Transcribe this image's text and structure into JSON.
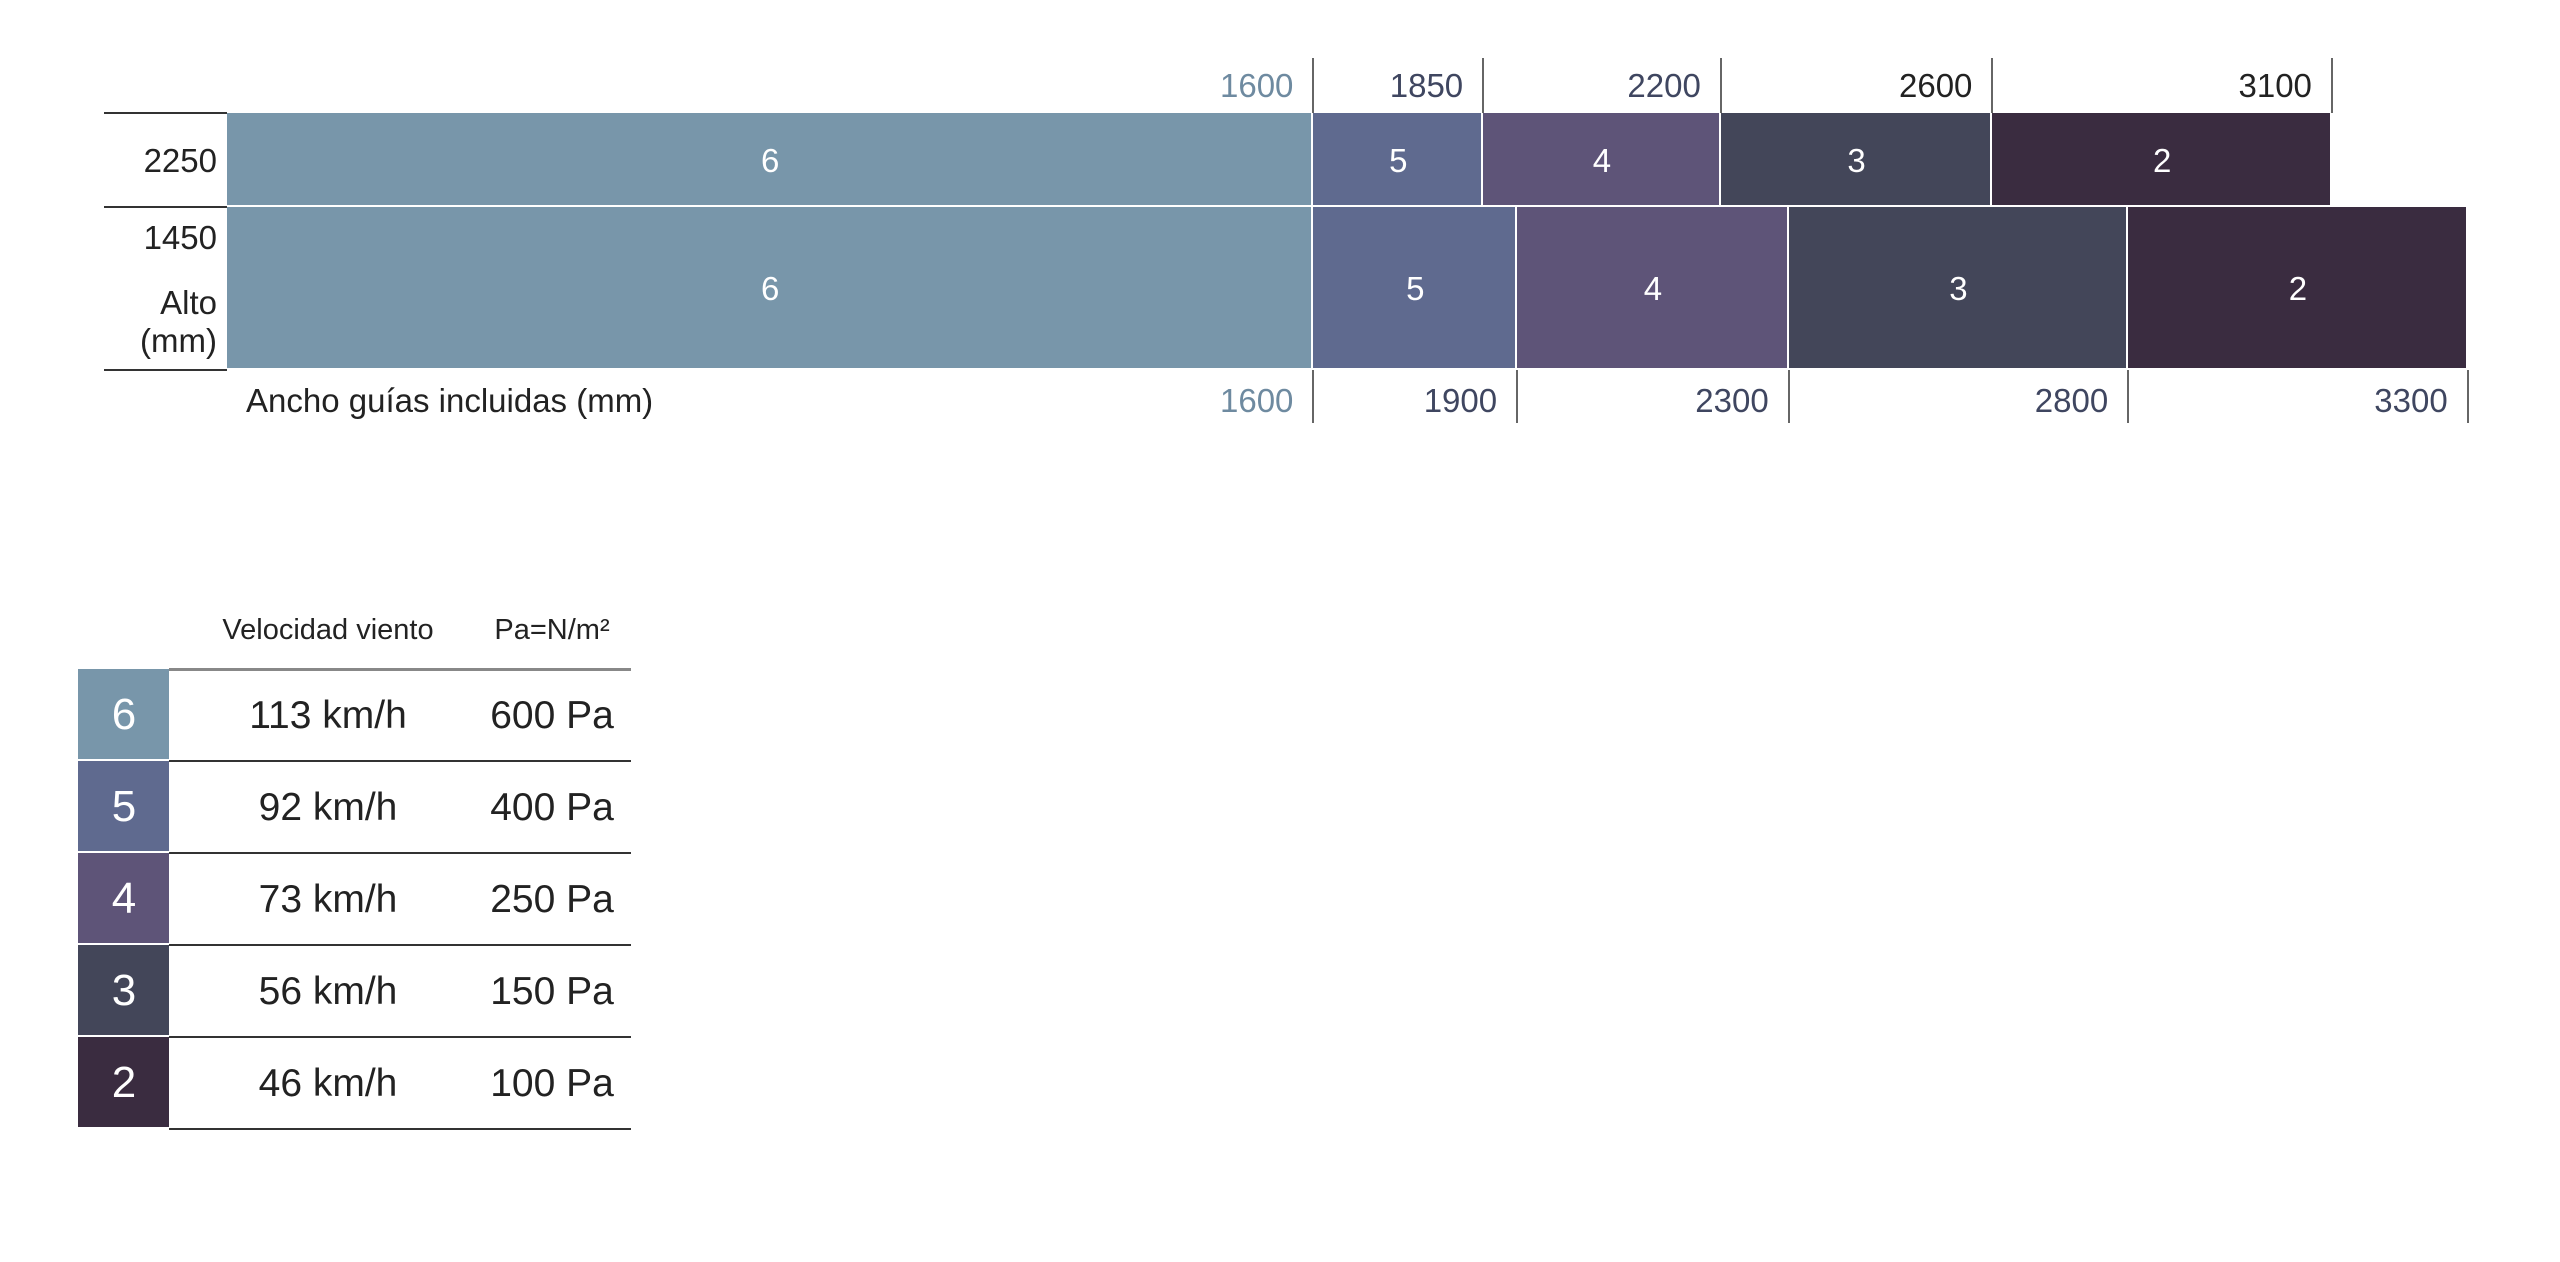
{
  "diagram": {
    "rows": [
      {
        "height": 2250,
        "widths": [
          1600,
          1850,
          2200,
          2600,
          3100
        ],
        "classes": [
          "6",
          "5",
          "4",
          "3",
          "2"
        ]
      },
      {
        "height": 1450,
        "widths": [
          1600,
          1900,
          2300,
          2800,
          3300
        ],
        "classes": [
          "6",
          "5",
          "4",
          "3",
          "2"
        ]
      }
    ],
    "height_label": [
      "Alto",
      "(mm)"
    ],
    "width_label": "Ancho guías incluidas (mm)"
  },
  "legend": {
    "headers": [
      "Velocidad viento",
      "Pa=N/m²"
    ],
    "rows": [
      [
        "6",
        "113 km/h",
        "600 Pa"
      ],
      [
        "5",
        "92 km/h",
        "400 Pa"
      ],
      [
        "4",
        "73 km/h",
        "250 Pa"
      ],
      [
        "3",
        "56 km/h",
        "150 Pa"
      ],
      [
        "2",
        "46 km/h",
        "100 Pa"
      ]
    ]
  }
}
